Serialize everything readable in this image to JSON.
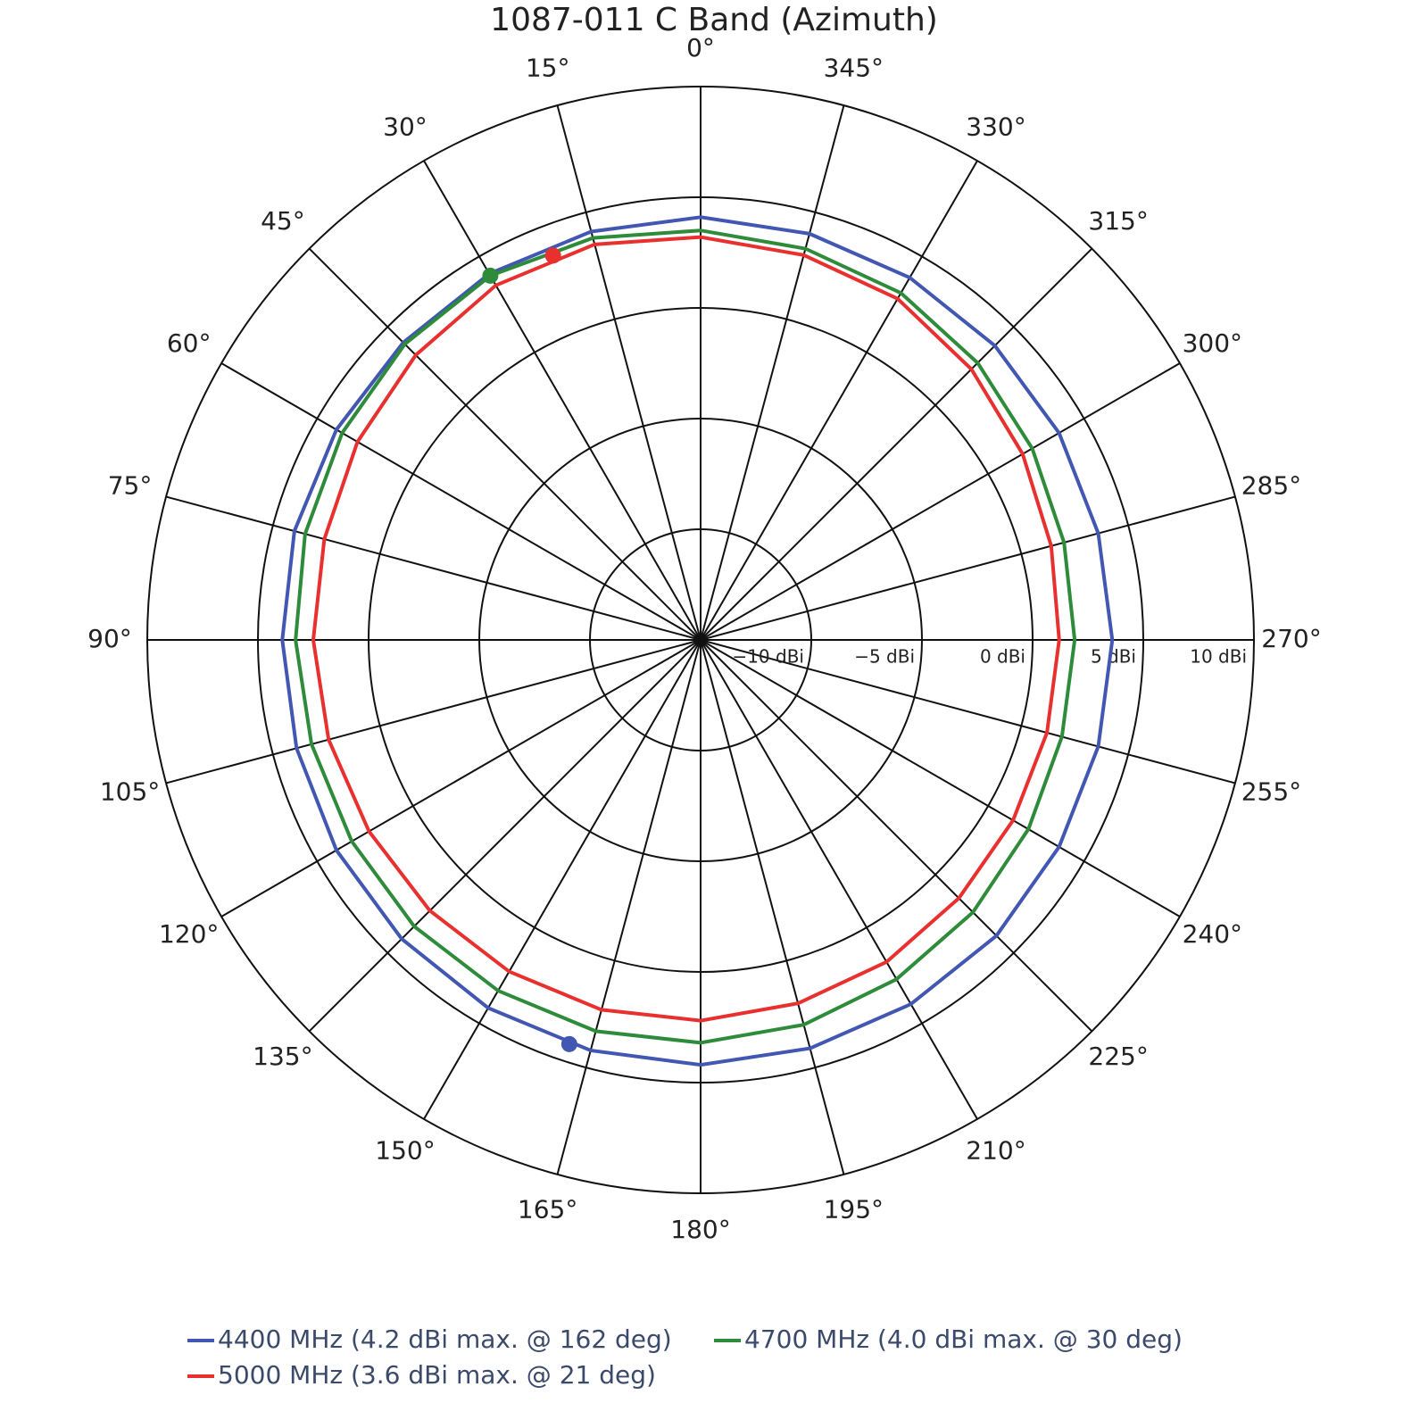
{
  "chart_data": {
    "type": "polar",
    "title": "1087-011 C Band (Azimuth)",
    "direction": "counterclockwise",
    "rotation": 0,
    "theta": [
      0,
      15,
      30,
      45,
      60,
      75,
      90,
      105,
      120,
      135,
      150,
      165,
      180,
      195,
      210,
      225,
      240,
      255,
      270,
      285,
      300,
      315,
      330,
      345
    ],
    "thetaticks": [
      {
        "value": 0,
        "label": "0°"
      },
      {
        "value": 15,
        "label": "15°"
      },
      {
        "value": 30,
        "label": "30°"
      },
      {
        "value": 45,
        "label": "45°"
      },
      {
        "value": 60,
        "label": "60°"
      },
      {
        "value": 75,
        "label": "75°"
      },
      {
        "value": 90,
        "label": "90°"
      },
      {
        "value": 105,
        "label": "105°"
      },
      {
        "value": 120,
        "label": "120°"
      },
      {
        "value": 135,
        "label": "135°"
      },
      {
        "value": 150,
        "label": "150°"
      },
      {
        "value": 165,
        "label": "165°"
      },
      {
        "value": 180,
        "label": "180°"
      },
      {
        "value": 195,
        "label": "195°"
      },
      {
        "value": 210,
        "label": "210°"
      },
      {
        "value": 225,
        "label": "225°"
      },
      {
        "value": 240,
        "label": "240°"
      },
      {
        "value": 255,
        "label": "255°"
      },
      {
        "value": 270,
        "label": "270°"
      },
      {
        "value": 285,
        "label": "285°"
      },
      {
        "value": 300,
        "label": "300°"
      },
      {
        "value": 315,
        "label": "315°"
      },
      {
        "value": 330,
        "label": "330°"
      },
      {
        "value": 345,
        "label": "345°"
      }
    ],
    "rlim": [
      -15,
      10
    ],
    "rticks": [
      {
        "value": -10,
        "label": "−10 dBi"
      },
      {
        "value": -5,
        "label": "−5 dBi"
      },
      {
        "value": 0,
        "label": "0 dBi"
      },
      {
        "value": 5,
        "label": "5 dBi"
      },
      {
        "value": 10,
        "label": "10 dBi"
      }
    ],
    "grid": true,
    "legend": "bottom",
    "series": [
      {
        "name": "4400 MHz (4.2 dBi max. @ 162 deg)",
        "color": "#4257b2",
        "values": [
          4.1,
          4.1,
          4.1,
          4.0,
          4.0,
          4.0,
          3.9,
          3.9,
          4.0,
          4.1,
          4.2,
          4.2,
          4.2,
          4.1,
          4.0,
          3.9,
          3.7,
          3.6,
          3.6,
          3.6,
          3.7,
          3.8,
          3.9,
          4.0
        ],
        "max_theta": 162,
        "max_r": 4.2
      },
      {
        "name": "4700 MHz (4.0 dBi max. @ 30 deg)",
        "color": "#2e8b3a",
        "values": [
          3.5,
          3.8,
          4.0,
          3.9,
          3.7,
          3.5,
          3.3,
          3.2,
          3.2,
          3.3,
          3.3,
          3.3,
          3.2,
          3.0,
          2.7,
          2.4,
          2.1,
          1.9,
          1.9,
          2.0,
          2.3,
          2.7,
          3.1,
          3.3
        ],
        "max_theta": 30,
        "max_r": 4.0
      },
      {
        "name": "5000 MHz (3.6 dBi max. @ 21 deg)",
        "color": "#e8302f",
        "values": [
          3.2,
          3.5,
          3.5,
          3.2,
          2.9,
          2.6,
          2.5,
          2.4,
          2.3,
          2.3,
          2.3,
          2.3,
          2.2,
          2.0,
          1.8,
          1.5,
          1.3,
          1.2,
          1.2,
          1.4,
          1.8,
          2.3,
          2.8,
          3.0
        ],
        "max_theta": 21,
        "max_r": 3.6
      }
    ]
  }
}
